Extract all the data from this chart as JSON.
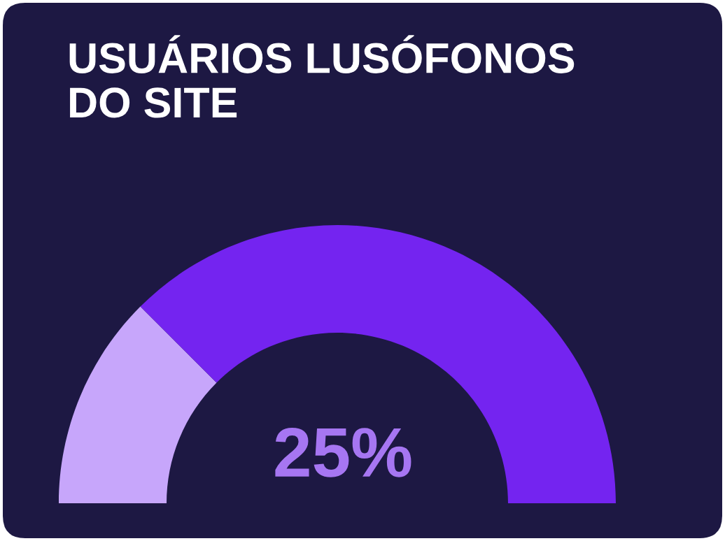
{
  "chart_data": {
    "type": "donut",
    "title": "USUÁRIOS LUSÓFONOS\nDO SITE",
    "categories": [
      null,
      null
    ],
    "values": [
      25,
      75
    ],
    "colors": [
      "#c7a6fb",
      "#7424f0"
    ],
    "annotations": [
      "25%"
    ]
  }
}
